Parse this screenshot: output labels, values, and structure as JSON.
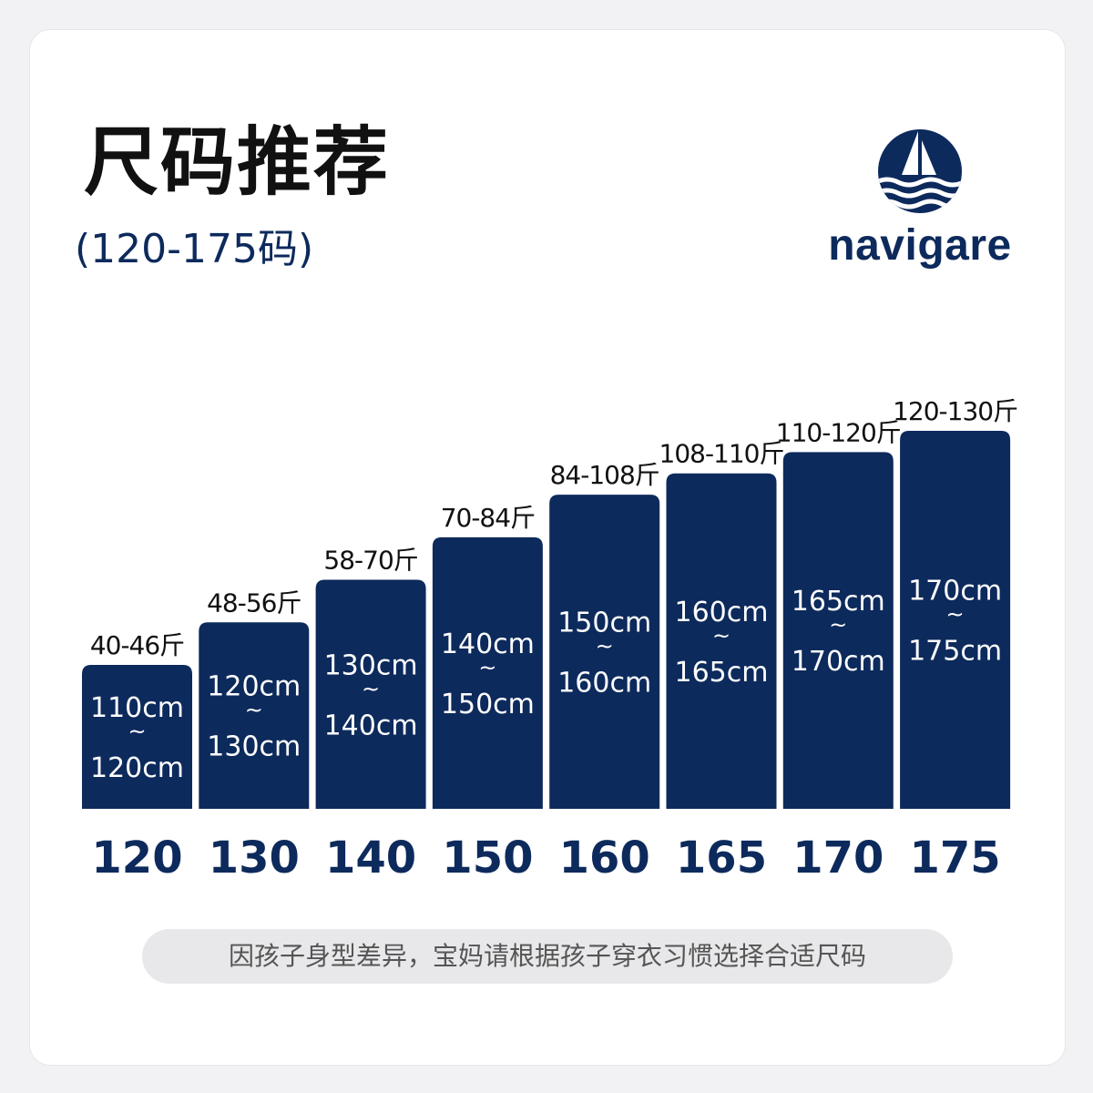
{
  "header": {
    "title": "尺码推荐",
    "subtitle": "(120-175码)"
  },
  "brand": {
    "name": "navigare",
    "icon": "sailboat-wave-icon",
    "color": "#0d2a5c"
  },
  "chart_data": {
    "type": "bar",
    "categories": [
      "120",
      "130",
      "140",
      "150",
      "160",
      "165",
      "170",
      "175"
    ],
    "weights": [
      "40-46斤",
      "48-56斤",
      "58-70斤",
      "70-84斤",
      "84-108斤",
      "108-110斤",
      "110-120斤",
      "120-130斤"
    ],
    "heights": [
      [
        "110cm",
        "~",
        "120cm"
      ],
      [
        "120cm",
        "~",
        "130cm"
      ],
      [
        "130cm",
        "~",
        "140cm"
      ],
      [
        "140cm",
        "~",
        "150cm"
      ],
      [
        "150cm",
        "~",
        "160cm"
      ],
      [
        "160cm",
        "~",
        "165cm"
      ],
      [
        "165cm",
        "~",
        "170cm"
      ],
      [
        "170cm",
        "~",
        "175cm"
      ]
    ],
    "values": [
      120,
      130,
      140,
      150,
      160,
      165,
      170,
      175
    ],
    "ylim": [
      100,
      175
    ],
    "bar_color": "#0d2a5c"
  },
  "footer": {
    "note": "因孩子身型差异，宝妈请根据孩子穿衣习惯选择合适尺码"
  }
}
